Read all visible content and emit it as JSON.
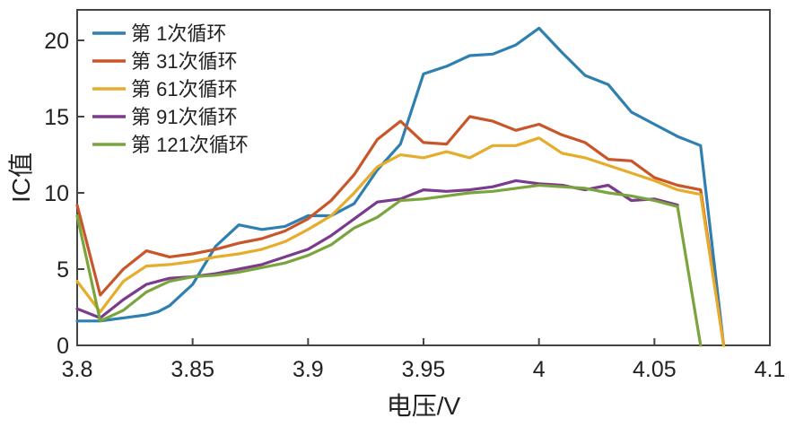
{
  "chart_data": {
    "type": "line",
    "xlabel": "电压/V",
    "ylabel": "IC值",
    "xlim": [
      3.8,
      4.1
    ],
    "ylim": [
      0,
      22
    ],
    "x_ticks": [
      "3.8",
      "3.85",
      "3.9",
      "3.95",
      "4",
      "4.05",
      "4.1"
    ],
    "y_ticks": [
      "0",
      "5",
      "10",
      "15",
      "20"
    ],
    "grid": false,
    "legend_position": "top-left",
    "series": [
      {
        "name": "第 1次循环",
        "color": "#2f7fb0",
        "x": [
          3.8,
          3.81,
          3.82,
          3.83,
          3.835,
          3.84,
          3.85,
          3.86,
          3.87,
          3.88,
          3.89,
          3.9,
          3.91,
          3.92,
          3.93,
          3.94,
          3.95,
          3.96,
          3.97,
          3.98,
          3.99,
          4.0,
          4.01,
          4.02,
          4.03,
          4.04,
          4.05,
          4.06,
          4.07,
          4.08
        ],
        "y": [
          1.6,
          1.6,
          1.8,
          2.0,
          2.2,
          2.6,
          4.0,
          6.5,
          7.9,
          7.6,
          7.8,
          8.5,
          8.5,
          9.3,
          11.5,
          13.2,
          17.8,
          18.3,
          19.0,
          19.1,
          19.7,
          20.8,
          19.2,
          17.7,
          17.1,
          15.3,
          14.5,
          13.7,
          13.1,
          0
        ]
      },
      {
        "name": "第 31次循环",
        "color": "#c8562a",
        "x": [
          3.8,
          3.81,
          3.82,
          3.83,
          3.84,
          3.85,
          3.86,
          3.87,
          3.88,
          3.89,
          3.9,
          3.91,
          3.92,
          3.93,
          3.94,
          3.95,
          3.96,
          3.97,
          3.98,
          3.99,
          4.0,
          4.01,
          4.02,
          4.03,
          4.04,
          4.05,
          4.06,
          4.07,
          4.08
        ],
        "y": [
          9.2,
          3.3,
          5.0,
          6.2,
          5.8,
          6.0,
          6.3,
          6.7,
          7.0,
          7.5,
          8.3,
          9.5,
          11.2,
          13.5,
          14.7,
          13.3,
          13.2,
          15.0,
          14.7,
          14.1,
          14.5,
          13.8,
          13.3,
          12.2,
          12.1,
          11.0,
          10.5,
          10.2,
          0
        ]
      },
      {
        "name": "第 61次循环",
        "color": "#e6ac2c",
        "x": [
          3.8,
          3.81,
          3.82,
          3.83,
          3.84,
          3.85,
          3.86,
          3.87,
          3.88,
          3.89,
          3.9,
          3.91,
          3.92,
          3.93,
          3.94,
          3.95,
          3.96,
          3.97,
          3.98,
          3.99,
          4.0,
          4.01,
          4.02,
          4.03,
          4.04,
          4.05,
          4.06,
          4.07,
          4.08
        ],
        "y": [
          4.2,
          2.2,
          4.2,
          5.2,
          5.3,
          5.5,
          5.8,
          6.0,
          6.3,
          6.8,
          7.6,
          8.5,
          10.0,
          11.7,
          12.5,
          12.3,
          12.7,
          12.3,
          13.1,
          13.1,
          13.6,
          12.6,
          12.3,
          11.8,
          11.3,
          10.8,
          10.2,
          9.9,
          0
        ]
      },
      {
        "name": "第 91次循环",
        "color": "#7b3a8c",
        "x": [
          3.8,
          3.81,
          3.82,
          3.83,
          3.84,
          3.85,
          3.86,
          3.87,
          3.88,
          3.89,
          3.9,
          3.91,
          3.92,
          3.93,
          3.94,
          3.95,
          3.96,
          3.97,
          3.98,
          3.99,
          4.0,
          4.01,
          4.02,
          4.03,
          4.04,
          4.05,
          4.06
        ],
        "y": [
          2.4,
          1.8,
          3.0,
          4.0,
          4.4,
          4.5,
          4.7,
          5.0,
          5.3,
          5.8,
          6.3,
          7.2,
          8.3,
          9.4,
          9.6,
          10.2,
          10.1,
          10.2,
          10.4,
          10.8,
          10.6,
          10.5,
          10.2,
          10.5,
          9.5,
          9.6,
          9.2
        ]
      },
      {
        "name": "第 121次循环",
        "color": "#7aa53d",
        "x": [
          3.8,
          3.81,
          3.82,
          3.83,
          3.84,
          3.85,
          3.86,
          3.87,
          3.88,
          3.89,
          3.9,
          3.91,
          3.92,
          3.93,
          3.94,
          3.95,
          3.96,
          3.97,
          3.98,
          3.99,
          4.0,
          4.01,
          4.02,
          4.03,
          4.04,
          4.05,
          4.06,
          4.07
        ],
        "y": [
          8.5,
          1.6,
          2.3,
          3.5,
          4.2,
          4.5,
          4.6,
          4.8,
          5.1,
          5.4,
          5.9,
          6.6,
          7.7,
          8.4,
          9.5,
          9.6,
          9.8,
          10.0,
          10.1,
          10.3,
          10.5,
          10.4,
          10.3,
          10.0,
          9.8,
          9.5,
          9.1,
          0
        ]
      }
    ]
  }
}
